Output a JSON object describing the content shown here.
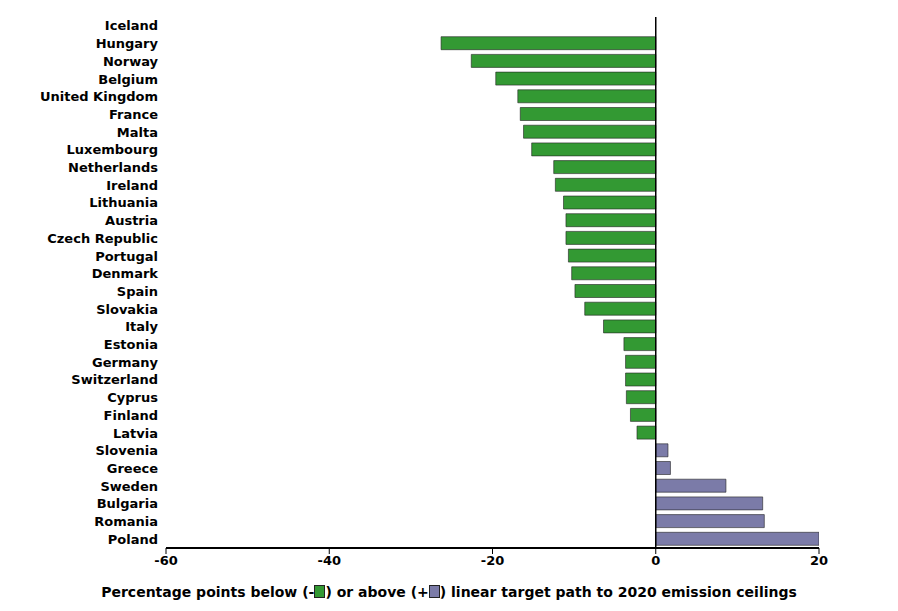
{
  "chart_data": {
    "type": "bar",
    "orientation": "horizontal",
    "categories": [
      "Iceland",
      "Hungary",
      "Norway",
      "Belgium",
      "United Kingdom",
      "France",
      "Malta",
      "Luxembourg",
      "Netherlands",
      "Ireland",
      "Lithuania",
      "Austria",
      "Czech Republic",
      "Portugal",
      "Denmark",
      "Spain",
      "Slovakia",
      "Italy",
      "Estonia",
      "Germany",
      "Switzerland",
      "Cyprus",
      "Finland",
      "Latvia",
      "Slovenia",
      "Greece",
      "Sweden",
      "Bulgaria",
      "Romania",
      "Poland"
    ],
    "values": [
      null,
      -26.3,
      -22.6,
      -19.6,
      -16.9,
      -16.6,
      -16.2,
      -15.2,
      -12.5,
      -12.3,
      -11.3,
      -11.0,
      -11.0,
      -10.7,
      -10.3,
      -9.9,
      -8.7,
      -6.4,
      -3.9,
      -3.7,
      -3.7,
      -3.6,
      -3.1,
      -2.3,
      1.5,
      1.8,
      8.6,
      13.1,
      13.3,
      20.0
    ],
    "colors": [
      "#339933",
      "#339933",
      "#339933",
      "#339933",
      "#339933",
      "#339933",
      "#339933",
      "#339933",
      "#339933",
      "#339933",
      "#339933",
      "#339933",
      "#339933",
      "#339933",
      "#339933",
      "#339933",
      "#339933",
      "#339933",
      "#339933",
      "#339933",
      "#339933",
      "#339933",
      "#339933",
      "#339933",
      "#7b7ba8",
      "#7b7ba8",
      "#7b7ba8",
      "#7b7ba8",
      "#7b7ba8",
      "#7b7ba8"
    ],
    "xlabel": "Percentage points below (-) or above (+) linear target path to 2020 emission ceilings",
    "xlim": [
      -60,
      20
    ],
    "xticks": [
      -60,
      -40,
      -20,
      0,
      20
    ],
    "grid": false
  }
}
